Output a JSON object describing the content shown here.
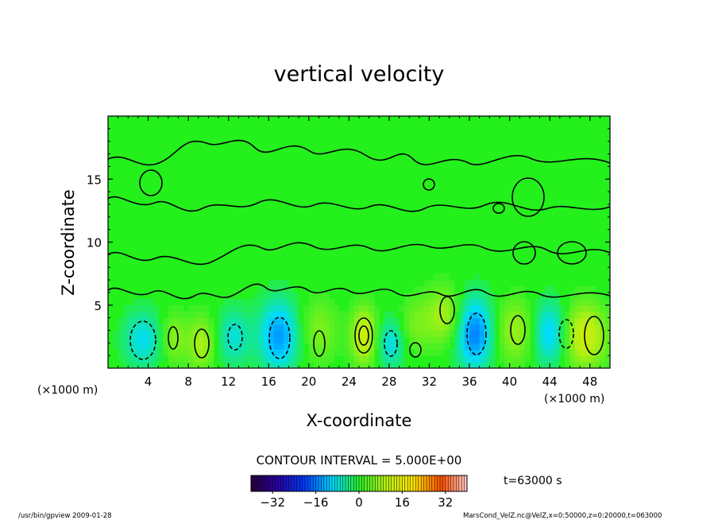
{
  "chart_data": {
    "type": "heatmap",
    "title": "vertical velocity",
    "xlabel": "X-coordinate",
    "ylabel": "Z-coordinate",
    "x_unit_left": "(×1000 m)",
    "x_unit_right": "(×1000 m)",
    "xlim": [
      0,
      50
    ],
    "ylim": [
      0,
      20
    ],
    "x_ticks": [
      4,
      8,
      12,
      16,
      20,
      24,
      28,
      32,
      36,
      40,
      44,
      48
    ],
    "x_tick_labels": [
      "4",
      "8",
      "12",
      "16",
      "20",
      "24",
      "28",
      "32",
      "36",
      "40",
      "44",
      "48"
    ],
    "y_ticks": [
      5,
      10,
      15
    ],
    "y_tick_labels": [
      "5",
      "10",
      "15"
    ],
    "contour_interval_label": "CONTOUR INTERVAL = 5.000E+00",
    "time_label": "t=63000 s",
    "colorbar": {
      "range": [
        -40,
        40
      ],
      "ticks": [
        -32,
        -16,
        0,
        16,
        32
      ],
      "tick_labels": [
        "−32",
        "−16",
        "0",
        "16",
        "32"
      ]
    },
    "blobs": [
      {
        "x": 3.5,
        "z": 2.3,
        "amp": -9,
        "sx": 1.4,
        "sz": 1.6
      },
      {
        "x": 6.5,
        "z": 2.4,
        "amp": 7,
        "sx": 0.9,
        "sz": 1.4
      },
      {
        "x": 9.3,
        "z": 2.0,
        "amp": 9,
        "sx": 1.0,
        "sz": 1.5
      },
      {
        "x": 12.5,
        "z": 2.5,
        "amp": -8,
        "sx": 1.2,
        "sz": 1.6
      },
      {
        "x": 17.0,
        "z": 2.6,
        "amp": -14,
        "sx": 1.4,
        "sz": 2.0
      },
      {
        "x": 21.0,
        "z": 3.0,
        "amp": 6,
        "sx": 1.3,
        "sz": 1.8
      },
      {
        "x": 25.5,
        "z": 2.6,
        "amp": 13,
        "sx": 0.9,
        "sz": 1.6
      },
      {
        "x": 28.2,
        "z": 2.0,
        "amp": -9,
        "sx": 1.0,
        "sz": 1.4
      },
      {
        "x": 30.5,
        "z": 3.4,
        "amp": 5,
        "sx": 1.2,
        "sz": 1.6
      },
      {
        "x": 33.5,
        "z": 4.2,
        "amp": 9,
        "sx": 1.3,
        "sz": 1.6
      },
      {
        "x": 36.5,
        "z": 2.8,
        "amp": -16,
        "sx": 1.3,
        "sz": 2.0
      },
      {
        "x": 40.5,
        "z": 3.0,
        "amp": 8,
        "sx": 1.4,
        "sz": 1.8
      },
      {
        "x": 44.0,
        "z": 2.8,
        "amp": -11,
        "sx": 1.2,
        "sz": 1.8
      },
      {
        "x": 47.5,
        "z": 2.6,
        "amp": 13,
        "sx": 1.5,
        "sz": 1.8
      }
    ]
  },
  "footer": {
    "left": "/usr/bin/gpview   2009-01-28",
    "right": "MarsCond_VelZ.nc@VelZ,x=0:50000,z=0:20000,t=063000"
  }
}
